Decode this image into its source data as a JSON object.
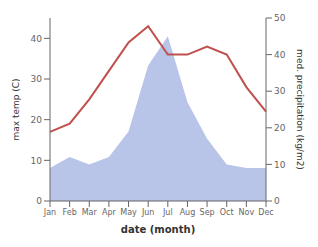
{
  "chart_data": {
    "type": "line",
    "categories": [
      "Jan",
      "Feb",
      "Mar",
      "Apr",
      "May",
      "Jun",
      "Jul",
      "Aug",
      "Sep",
      "Oct",
      "Nov",
      "Dec"
    ],
    "series": [
      {
        "type": "area",
        "color": "#b8c4e8",
        "axis": "y2",
        "values": [
          9,
          12,
          10,
          12,
          19,
          37,
          45,
          27,
          17,
          10,
          9,
          9
        ]
      },
      {
        "type": "line",
        "color": "#c0504d",
        "values": [
          17,
          19,
          25,
          32,
          39,
          43,
          36,
          36,
          38,
          36,
          28,
          22
        ]
      }
    ],
    "xlabel": "date (month)",
    "ylabel": "max temp (C)",
    "y2label": "med. precipitation (kg/m2)",
    "ylim": [
      0,
      45
    ],
    "yticks": [
      0,
      10,
      20,
      30,
      40
    ],
    "y2lim": [
      0,
      50
    ],
    "y2ticks": [
      0,
      10,
      20,
      30,
      40,
      50
    ]
  }
}
